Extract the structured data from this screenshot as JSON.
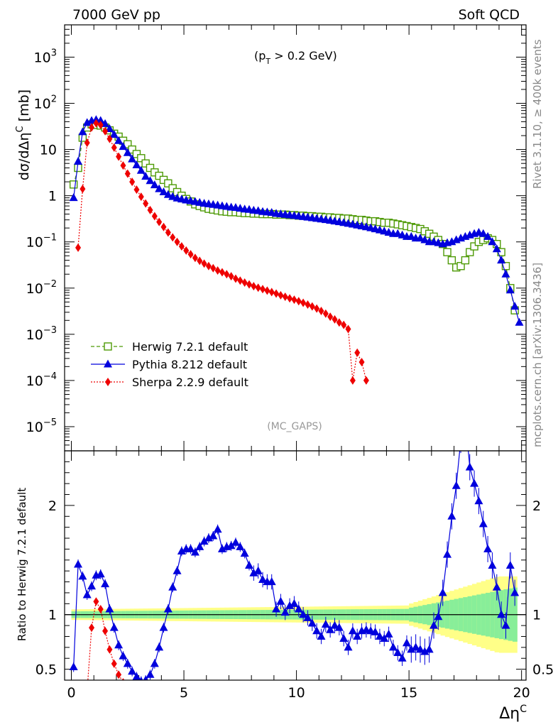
{
  "header": {
    "left": "7000 GeV pp",
    "right": "Soft QCD"
  },
  "side_labels": {
    "top": "Rivet 3.1.10, ≥ 400k events",
    "bottom": "mcplots.cern.ch [arXiv:1306.3436]"
  },
  "annotation": "(p_T > 0.2 GeV)",
  "analysis_tag": "(MC_GAPS)",
  "colors": {
    "herwig": "#4e9a06",
    "pythia": "#0000dd",
    "sherpa": "#ee0000",
    "band_yellow": "#ffff88",
    "band_green": "#88ee99"
  },
  "chart_data": [
    {
      "type": "line",
      "panel": "main",
      "ylabel": "dσ/dΔη^C [mb]",
      "xlabel": "Δη^C",
      "yscale": "log",
      "xlim": [
        -0.3,
        20.2
      ],
      "ylim": [
        3e-06,
        5000
      ],
      "x_ticks": [
        0,
        5,
        10,
        15,
        20
      ],
      "y_ticks": [
        "10^-5",
        "10^-4",
        "10^-3",
        "10^-2",
        "10^-1",
        "1",
        "10",
        "10^2",
        "10^3"
      ],
      "legend_position": "bottom-left",
      "series": [
        {
          "name": "Herwig 7.2.1 default",
          "marker": "open-square",
          "line": "dashed",
          "x": [
            0.1,
            0.3,
            0.5,
            0.7,
            0.9,
            1.1,
            1.3,
            1.5,
            1.7,
            1.9,
            2.1,
            2.3,
            2.5,
            2.7,
            2.9,
            3.1,
            3.3,
            3.5,
            3.7,
            3.9,
            4.1,
            4.3,
            4.5,
            4.7,
            4.9,
            5.1,
            5.3,
            5.5,
            5.7,
            5.9,
            6.1,
            6.3,
            6.5,
            6.7,
            6.9,
            7.1,
            7.3,
            7.5,
            7.7,
            7.9,
            8.1,
            8.3,
            8.5,
            8.7,
            8.9,
            9.1,
            9.3,
            9.5,
            9.7,
            9.9,
            10.1,
            10.3,
            10.5,
            10.7,
            10.9,
            11.1,
            11.3,
            11.5,
            11.7,
            11.9,
            12.1,
            12.3,
            12.5,
            12.7,
            12.9,
            13.1,
            13.3,
            13.5,
            13.7,
            13.9,
            14.1,
            14.3,
            14.5,
            14.7,
            14.9,
            15.1,
            15.3,
            15.5,
            15.7,
            15.9,
            16.1,
            16.3,
            16.5,
            16.7,
            16.9,
            17.1,
            17.3,
            17.5,
            17.7,
            17.9,
            18.1,
            18.3,
            18.5,
            18.7,
            18.9,
            19.1,
            19.3,
            19.5,
            19.7
          ],
          "values": [
            1.75,
            4.0,
            18.0,
            30.0,
            35.0,
            34.0,
            33.0,
            30.0,
            26.0,
            22.0,
            19.0,
            15.5,
            13.0,
            10.0,
            8.0,
            6.5,
            5.0,
            4.0,
            3.2,
            2.7,
            2.2,
            1.85,
            1.45,
            1.2,
            1.0,
            0.85,
            0.75,
            0.65,
            0.6,
            0.56,
            0.52,
            0.5,
            0.48,
            0.46,
            0.45,
            0.44,
            0.44,
            0.43,
            0.42,
            0.42,
            0.41,
            0.41,
            0.4,
            0.4,
            0.4,
            0.39,
            0.39,
            0.39,
            0.38,
            0.38,
            0.37,
            0.37,
            0.36,
            0.36,
            0.35,
            0.35,
            0.34,
            0.34,
            0.33,
            0.33,
            0.32,
            0.32,
            0.31,
            0.3,
            0.3,
            0.29,
            0.28,
            0.28,
            0.27,
            0.26,
            0.26,
            0.25,
            0.24,
            0.23,
            0.22,
            0.21,
            0.2,
            0.19,
            0.17,
            0.15,
            0.13,
            0.11,
            0.09,
            0.06,
            0.04,
            0.028,
            0.03,
            0.04,
            0.06,
            0.08,
            0.1,
            0.11,
            0.12,
            0.11,
            0.09,
            0.06,
            0.03,
            0.01,
            0.0033
          ]
        },
        {
          "name": "Pythia 8.212 default",
          "marker": "filled-triangle",
          "line": "solid",
          "x": [
            0.1,
            0.3,
            0.5,
            0.7,
            0.9,
            1.1,
            1.3,
            1.5,
            1.7,
            1.9,
            2.1,
            2.3,
            2.5,
            2.7,
            2.9,
            3.1,
            3.3,
            3.5,
            3.7,
            3.9,
            4.1,
            4.3,
            4.5,
            4.7,
            4.9,
            5.1,
            5.3,
            5.5,
            5.7,
            5.9,
            6.1,
            6.3,
            6.5,
            6.7,
            6.9,
            7.1,
            7.3,
            7.5,
            7.7,
            7.9,
            8.1,
            8.3,
            8.5,
            8.7,
            8.9,
            9.1,
            9.3,
            9.5,
            9.7,
            9.9,
            10.1,
            10.3,
            10.5,
            10.7,
            10.9,
            11.1,
            11.3,
            11.5,
            11.7,
            11.9,
            12.1,
            12.3,
            12.5,
            12.7,
            12.9,
            13.1,
            13.3,
            13.5,
            13.7,
            13.9,
            14.1,
            14.3,
            14.5,
            14.7,
            14.9,
            15.1,
            15.3,
            15.5,
            15.7,
            15.9,
            16.1,
            16.3,
            16.5,
            16.7,
            16.9,
            17.1,
            17.3,
            17.5,
            17.7,
            17.9,
            18.1,
            18.3,
            18.5,
            18.7,
            18.9,
            19.1,
            19.3,
            19.5,
            19.7,
            19.9
          ],
          "values": [
            0.9,
            5.5,
            24.0,
            38.0,
            42.0,
            44.0,
            42.0,
            36.0,
            28.0,
            21.0,
            15.5,
            11.5,
            8.5,
            6.2,
            4.6,
            3.5,
            2.6,
            2.1,
            1.7,
            1.4,
            1.2,
            1.05,
            0.95,
            0.88,
            0.84,
            0.8,
            0.77,
            0.74,
            0.71,
            0.68,
            0.66,
            0.64,
            0.62,
            0.6,
            0.58,
            0.56,
            0.55,
            0.53,
            0.51,
            0.5,
            0.48,
            0.47,
            0.45,
            0.44,
            0.43,
            0.41,
            0.4,
            0.39,
            0.38,
            0.37,
            0.36,
            0.35,
            0.34,
            0.33,
            0.32,
            0.31,
            0.3,
            0.29,
            0.28,
            0.27,
            0.26,
            0.25,
            0.24,
            0.23,
            0.22,
            0.21,
            0.2,
            0.19,
            0.18,
            0.17,
            0.16,
            0.15,
            0.15,
            0.14,
            0.13,
            0.13,
            0.12,
            0.12,
            0.11,
            0.1,
            0.1,
            0.095,
            0.09,
            0.095,
            0.1,
            0.11,
            0.12,
            0.13,
            0.14,
            0.15,
            0.16,
            0.15,
            0.13,
            0.1,
            0.07,
            0.04,
            0.02,
            0.009,
            0.004,
            0.0018
          ]
        },
        {
          "name": "Sherpa 2.2.9 default",
          "marker": "filled-diamond",
          "line": "dotted",
          "x": [
            0.3,
            0.5,
            0.7,
            0.9,
            1.1,
            1.3,
            1.5,
            1.7,
            1.9,
            2.1,
            2.3,
            2.5,
            2.7,
            2.9,
            3.1,
            3.3,
            3.5,
            3.7,
            3.9,
            4.1,
            4.3,
            4.5,
            4.7,
            4.9,
            5.1,
            5.3,
            5.5,
            5.7,
            5.9,
            6.1,
            6.3,
            6.5,
            6.7,
            6.9,
            7.1,
            7.3,
            7.5,
            7.7,
            7.9,
            8.1,
            8.3,
            8.5,
            8.7,
            8.9,
            9.1,
            9.3,
            9.5,
            9.7,
            9.9,
            10.1,
            10.3,
            10.5,
            10.7,
            10.9,
            11.1,
            11.3,
            11.5,
            11.7,
            11.9,
            12.1,
            12.3,
            12.5,
            12.7,
            12.9,
            13.1
          ],
          "values": [
            0.075,
            1.4,
            14.0,
            30.0,
            37.0,
            34.0,
            25.0,
            17.0,
            11.0,
            7.0,
            4.5,
            3.0,
            2.0,
            1.35,
            0.95,
            0.68,
            0.49,
            0.36,
            0.27,
            0.21,
            0.16,
            0.125,
            0.1,
            0.08,
            0.065,
            0.054,
            0.045,
            0.039,
            0.034,
            0.03,
            0.027,
            0.024,
            0.022,
            0.02,
            0.018,
            0.016,
            0.0145,
            0.0132,
            0.012,
            0.011,
            0.0102,
            0.0095,
            0.0088,
            0.0082,
            0.0076,
            0.007,
            0.0065,
            0.006,
            0.0056,
            0.0052,
            0.0048,
            0.0044,
            0.004,
            0.0036,
            0.0032,
            0.0028,
            0.0024,
            0.0021,
            0.0018,
            0.0016,
            0.0013,
            0.0001,
            0.0004,
            0.00025,
            0.0001
          ]
        }
      ]
    },
    {
      "type": "line",
      "panel": "ratio",
      "ylabel": "Ratio to Herwig 7.2.1 default",
      "xlabel": "Δη^C",
      "xlim": [
        -0.3,
        20.2
      ],
      "ylim": [
        0.4,
        2.5
      ],
      "y_ticks": [
        0.5,
        1,
        2
      ],
      "reference_line": 1,
      "series": [
        {
          "name": "Pythia 8.212 default",
          "x": [
            0.1,
            0.3,
            0.5,
            0.7,
            0.9,
            1.1,
            1.3,
            1.5,
            1.7,
            1.9,
            2.1,
            2.3,
            2.5,
            2.7,
            2.9,
            3.1,
            3.3,
            3.5,
            3.7,
            3.9,
            4.1,
            4.3,
            4.5,
            4.7,
            4.9,
            5.1,
            5.3,
            5.5,
            5.7,
            5.9,
            6.1,
            6.3,
            6.5,
            6.7,
            6.9,
            7.1,
            7.3,
            7.5,
            7.7,
            7.9,
            8.1,
            8.3,
            8.5,
            8.7,
            8.9,
            9.1,
            9.3,
            9.5,
            9.7,
            9.9,
            10.1,
            10.3,
            10.5,
            10.7,
            10.9,
            11.1,
            11.3,
            11.5,
            11.7,
            11.9,
            12.1,
            12.3,
            12.5,
            12.7,
            12.9,
            13.1,
            13.3,
            13.5,
            13.7,
            13.9,
            14.1,
            14.3,
            14.5,
            14.7,
            14.9,
            15.1,
            15.3,
            15.5,
            15.7,
            15.9,
            16.1,
            16.3,
            16.5,
            16.7,
            16.9,
            17.1,
            17.3,
            17.5,
            17.7,
            17.9,
            18.1,
            18.3,
            18.5,
            18.7,
            18.9,
            19.1,
            19.3,
            19.5,
            19.7
          ],
          "values": [
            0.52,
            1.46,
            1.35,
            1.18,
            1.26,
            1.36,
            1.37,
            1.28,
            1.05,
            0.88,
            0.72,
            0.62,
            0.55,
            0.48,
            0.43,
            0.39,
            0.4,
            0.45,
            0.55,
            0.7,
            0.88,
            1.05,
            1.25,
            1.4,
            1.58,
            1.6,
            1.6,
            1.57,
            1.62,
            1.67,
            1.7,
            1.72,
            1.78,
            1.6,
            1.62,
            1.63,
            1.66,
            1.62,
            1.56,
            1.45,
            1.38,
            1.4,
            1.32,
            1.3,
            1.3,
            1.05,
            1.12,
            1.02,
            1.08,
            1.1,
            1.05,
            1.0,
            0.97,
            0.92,
            0.85,
            0.8,
            0.91,
            0.86,
            0.9,
            0.88,
            0.78,
            0.7,
            0.85,
            0.8,
            0.85,
            0.86,
            0.85,
            0.84,
            0.8,
            0.78,
            0.82,
            0.7,
            0.65,
            0.6,
            0.74,
            0.68,
            0.7,
            0.68,
            0.66,
            0.68,
            0.9,
            0.98,
            1.2,
            1.55,
            1.9,
            2.18,
            2.6,
            2.8,
            2.35,
            2.2,
            2.04,
            1.83,
            1.6,
            1.45,
            1.25,
            1.0,
            0.9,
            1.45,
            1.2
          ]
        },
        {
          "name": "Sherpa 2.2.9 default",
          "x": [
            0.7,
            0.9,
            1.1,
            1.3,
            1.5,
            1.7,
            1.9,
            2.1,
            2.3
          ],
          "values": [
            0.3,
            0.88,
            1.12,
            1.05,
            0.85,
            0.68,
            0.55,
            0.45,
            0.38
          ]
        }
      ]
    }
  ]
}
